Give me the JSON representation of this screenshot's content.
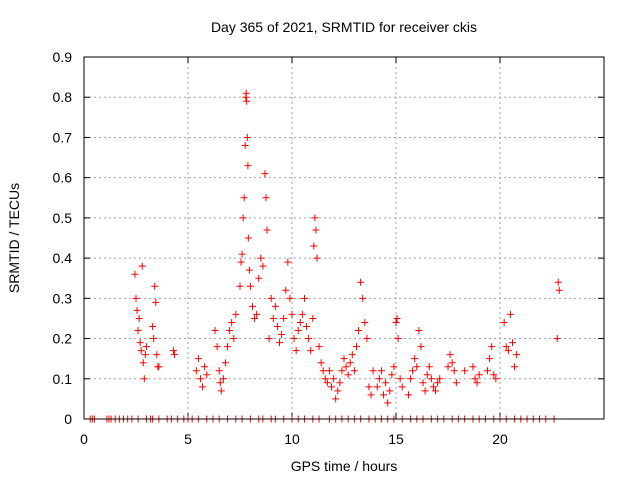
{
  "chart_data": {
    "type": "scatter",
    "title": "Day 365 of 2021, SRMTID for receiver ckis",
    "xlabel": "GPS time / hours",
    "ylabel": "SRMTID / TECUs",
    "xlim": [
      0,
      25
    ],
    "ylim": [
      0,
      0.9
    ],
    "xticks": [
      0,
      5,
      10,
      15,
      20
    ],
    "xtick_labels": [
      "0",
      "5",
      "10",
      "15",
      "20"
    ],
    "yticks": [
      0,
      0.1,
      0.2,
      0.3,
      0.4,
      0.5,
      0.6,
      0.7,
      0.8,
      0.9
    ],
    "ytick_labels": [
      "0",
      "0.1",
      "0.2",
      "0.3",
      "0.4",
      "0.5",
      "0.6",
      "0.7",
      "0.8",
      "0.9"
    ],
    "grid": true,
    "marker": "+",
    "marker_color": "#ff0000",
    "series": [
      {
        "name": "SRMTID",
        "points": [
          [
            2.45,
            0.36
          ],
          [
            2.5,
            0.3
          ],
          [
            2.55,
            0.27
          ],
          [
            2.6,
            0.22
          ],
          [
            2.65,
            0.25
          ],
          [
            2.7,
            0.19
          ],
          [
            2.75,
            0.17
          ],
          [
            2.8,
            0.38
          ],
          [
            2.85,
            0.14
          ],
          [
            2.9,
            0.1
          ],
          [
            2.95,
            0.16
          ],
          [
            3.0,
            0.18
          ],
          [
            3.3,
            0.23
          ],
          [
            3.35,
            0.2
          ],
          [
            3.4,
            0.33
          ],
          [
            3.45,
            0.29
          ],
          [
            3.5,
            0.16
          ],
          [
            3.55,
            0.13
          ],
          [
            3.6,
            0.13
          ],
          [
            4.3,
            0.17
          ],
          [
            4.35,
            0.16
          ],
          [
            5.4,
            0.12
          ],
          [
            5.5,
            0.15
          ],
          [
            5.6,
            0.1
          ],
          [
            5.7,
            0.08
          ],
          [
            5.8,
            0.13
          ],
          [
            5.9,
            0.11
          ],
          [
            6.3,
            0.22
          ],
          [
            6.4,
            0.18
          ],
          [
            6.5,
            0.12
          ],
          [
            6.55,
            0.09
          ],
          [
            6.6,
            0.07
          ],
          [
            6.7,
            0.1
          ],
          [
            6.8,
            0.14
          ],
          [
            6.9,
            0.18
          ],
          [
            7.0,
            0.22
          ],
          [
            7.1,
            0.24
          ],
          [
            7.2,
            0.2
          ],
          [
            7.3,
            0.26
          ],
          [
            7.5,
            0.33
          ],
          [
            7.55,
            0.39
          ],
          [
            7.6,
            0.41
          ],
          [
            7.65,
            0.5
          ],
          [
            7.7,
            0.55
          ],
          [
            7.75,
            0.68
          ],
          [
            7.78,
            0.8
          ],
          [
            7.8,
            0.81
          ],
          [
            7.82,
            0.79
          ],
          [
            7.85,
            0.7
          ],
          [
            7.88,
            0.63
          ],
          [
            7.9,
            0.45
          ],
          [
            7.95,
            0.37
          ],
          [
            8.0,
            0.33
          ],
          [
            8.1,
            0.28
          ],
          [
            8.2,
            0.25
          ],
          [
            8.3,
            0.26
          ],
          [
            8.4,
            0.35
          ],
          [
            8.5,
            0.4
          ],
          [
            8.6,
            0.38
          ],
          [
            8.7,
            0.61
          ],
          [
            8.75,
            0.55
          ],
          [
            8.8,
            0.47
          ],
          [
            8.9,
            0.2
          ],
          [
            9.0,
            0.3
          ],
          [
            9.1,
            0.25
          ],
          [
            9.2,
            0.28
          ],
          [
            9.3,
            0.23
          ],
          [
            9.4,
            0.19
          ],
          [
            9.5,
            0.21
          ],
          [
            9.6,
            0.25
          ],
          [
            9.7,
            0.32
          ],
          [
            9.8,
            0.39
          ],
          [
            9.9,
            0.3
          ],
          [
            10.0,
            0.26
          ],
          [
            10.1,
            0.2
          ],
          [
            10.2,
            0.17
          ],
          [
            10.3,
            0.22
          ],
          [
            10.4,
            0.24
          ],
          [
            10.5,
            0.26
          ],
          [
            10.6,
            0.3
          ],
          [
            10.7,
            0.23
          ],
          [
            10.8,
            0.2
          ],
          [
            10.9,
            0.17
          ],
          [
            11.0,
            0.25
          ],
          [
            11.05,
            0.43
          ],
          [
            11.1,
            0.5
          ],
          [
            11.15,
            0.47
          ],
          [
            11.2,
            0.4
          ],
          [
            11.3,
            0.18
          ],
          [
            11.4,
            0.14
          ],
          [
            11.5,
            0.12
          ],
          [
            11.6,
            0.1
          ],
          [
            11.7,
            0.09
          ],
          [
            11.8,
            0.12
          ],
          [
            11.9,
            0.08
          ],
          [
            12.0,
            0.1
          ],
          [
            12.1,
            0.05
          ],
          [
            12.2,
            0.07
          ],
          [
            12.3,
            0.09
          ],
          [
            12.4,
            0.12
          ],
          [
            12.5,
            0.15
          ],
          [
            12.6,
            0.13
          ],
          [
            12.7,
            0.11
          ],
          [
            12.8,
            0.14
          ],
          [
            12.9,
            0.16
          ],
          [
            13.0,
            0.12
          ],
          [
            13.1,
            0.18
          ],
          [
            13.2,
            0.22
          ],
          [
            13.3,
            0.34
          ],
          [
            13.4,
            0.3
          ],
          [
            13.5,
            0.24
          ],
          [
            13.6,
            0.2
          ],
          [
            13.7,
            0.08
          ],
          [
            13.8,
            0.06
          ],
          [
            13.9,
            0.12
          ],
          [
            14.1,
            0.08
          ],
          [
            14.2,
            0.1
          ],
          [
            14.3,
            0.12
          ],
          [
            14.4,
            0.06
          ],
          [
            14.5,
            0.09
          ],
          [
            14.6,
            0.04
          ],
          [
            14.7,
            0.07
          ],
          [
            14.8,
            0.11
          ],
          [
            14.9,
            0.13
          ],
          [
            15.0,
            0.24
          ],
          [
            15.05,
            0.25
          ],
          [
            15.1,
            0.2
          ],
          [
            15.2,
            0.1
          ],
          [
            15.3,
            0.08
          ],
          [
            15.6,
            0.06
          ],
          [
            15.7,
            0.1
          ],
          [
            15.8,
            0.12
          ],
          [
            15.9,
            0.15
          ],
          [
            16.0,
            0.13
          ],
          [
            16.1,
            0.22
          ],
          [
            16.2,
            0.18
          ],
          [
            16.3,
            0.09
          ],
          [
            16.4,
            0.07
          ],
          [
            16.5,
            0.11
          ],
          [
            16.6,
            0.13
          ],
          [
            16.7,
            0.1
          ],
          [
            16.8,
            0.08
          ],
          [
            16.9,
            0.07
          ],
          [
            17.0,
            0.09
          ],
          [
            17.1,
            0.1
          ],
          [
            17.5,
            0.13
          ],
          [
            17.6,
            0.16
          ],
          [
            17.7,
            0.14
          ],
          [
            17.8,
            0.12
          ],
          [
            17.9,
            0.09
          ],
          [
            18.3,
            0.12
          ],
          [
            18.7,
            0.13
          ],
          [
            18.8,
            0.1
          ],
          [
            18.9,
            0.09
          ],
          [
            19.0,
            0.11
          ],
          [
            19.4,
            0.12
          ],
          [
            19.5,
            0.15
          ],
          [
            19.6,
            0.18
          ],
          [
            19.7,
            0.11
          ],
          [
            19.8,
            0.1
          ],
          [
            20.2,
            0.24
          ],
          [
            20.3,
            0.18
          ],
          [
            20.4,
            0.17
          ],
          [
            20.5,
            0.26
          ],
          [
            20.6,
            0.19
          ],
          [
            20.7,
            0.13
          ],
          [
            20.8,
            0.16
          ],
          [
            22.75,
            0.2
          ],
          [
            22.8,
            0.34
          ],
          [
            22.85,
            0.32
          ],
          [
            0.3,
            0
          ],
          [
            0.4,
            0
          ],
          [
            0.5,
            0
          ],
          [
            1.1,
            0
          ],
          [
            1.2,
            0
          ],
          [
            1.3,
            0
          ],
          [
            1.5,
            0
          ],
          [
            1.7,
            0
          ],
          [
            1.9,
            0
          ],
          [
            2.1,
            0
          ],
          [
            2.3,
            0
          ],
          [
            2.6,
            0
          ],
          [
            3.0,
            0
          ],
          [
            3.2,
            0
          ],
          [
            3.3,
            0
          ],
          [
            3.6,
            0
          ],
          [
            4.0,
            0
          ],
          [
            4.2,
            0
          ],
          [
            4.5,
            0
          ],
          [
            4.8,
            0
          ],
          [
            5.0,
            0
          ],
          [
            5.2,
            0
          ],
          [
            5.5,
            0
          ],
          [
            5.9,
            0
          ],
          [
            6.2,
            0
          ],
          [
            6.5,
            0
          ],
          [
            6.9,
            0
          ],
          [
            7.3,
            0
          ],
          [
            7.6,
            0
          ],
          [
            8.0,
            0
          ],
          [
            8.4,
            0
          ],
          [
            8.6,
            0
          ],
          [
            9.0,
            0
          ],
          [
            9.2,
            0
          ],
          [
            9.6,
            0
          ],
          [
            10.0,
            0
          ],
          [
            10.3,
            0
          ],
          [
            10.6,
            0
          ],
          [
            11.0,
            0
          ],
          [
            11.3,
            0
          ],
          [
            11.8,
            0
          ],
          [
            12.1,
            0
          ],
          [
            12.4,
            0
          ],
          [
            12.7,
            0
          ],
          [
            13.0,
            0
          ],
          [
            13.3,
            0
          ],
          [
            13.7,
            0
          ],
          [
            14.0,
            0
          ],
          [
            14.3,
            0
          ],
          [
            14.6,
            0
          ],
          [
            14.9,
            0
          ],
          [
            15.3,
            0
          ],
          [
            15.7,
            0
          ],
          [
            16.0,
            0
          ],
          [
            16.3,
            0
          ],
          [
            16.7,
            0
          ],
          [
            17.0,
            0
          ],
          [
            17.3,
            0
          ],
          [
            17.7,
            0
          ],
          [
            18.0,
            0
          ],
          [
            18.3,
            0
          ],
          [
            18.7,
            0
          ],
          [
            19.0,
            0
          ],
          [
            19.3,
            0
          ],
          [
            19.7,
            0
          ],
          [
            20.0,
            0
          ],
          [
            20.3,
            0
          ],
          [
            20.7,
            0
          ],
          [
            21.0,
            0
          ],
          [
            21.3,
            0
          ],
          [
            21.6,
            0
          ],
          [
            21.9,
            0
          ],
          [
            22.2,
            0
          ],
          [
            22.6,
            0
          ]
        ]
      }
    ]
  }
}
